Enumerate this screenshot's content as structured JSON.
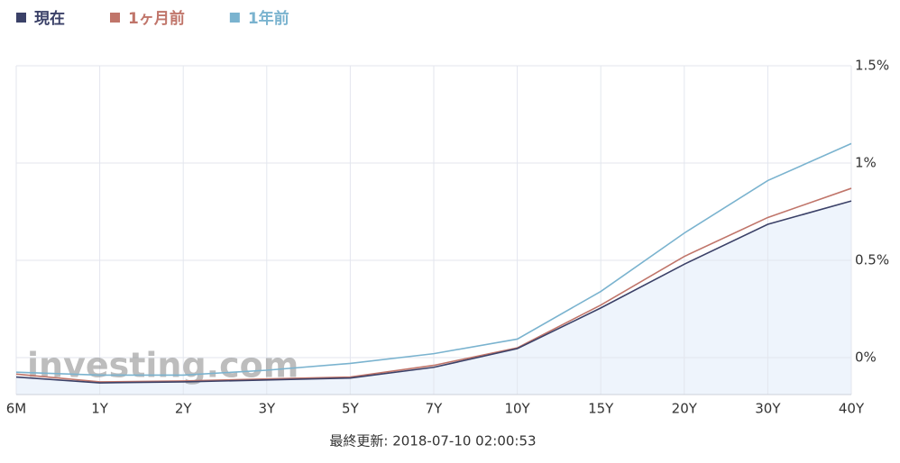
{
  "chart_data": {
    "type": "line",
    "categories": [
      "6M",
      "1Y",
      "2Y",
      "3Y",
      "5Y",
      "7Y",
      "10Y",
      "15Y",
      "20Y",
      "30Y",
      "40Y"
    ],
    "series": [
      {
        "name": "現在",
        "color": "#3b4168",
        "area": true,
        "area_color": "#eef4fc",
        "values": [
          -0.1,
          -0.13,
          -0.125,
          -0.115,
          -0.105,
          -0.05,
          0.046,
          0.255,
          0.48,
          0.685,
          0.805
        ]
      },
      {
        "name": "1ヶ月前",
        "color": "#c0756a",
        "values": [
          -0.085,
          -0.125,
          -0.12,
          -0.11,
          -0.1,
          -0.04,
          0.05,
          0.27,
          0.52,
          0.72,
          0.87
        ]
      },
      {
        "name": "1年前",
        "color": "#7ab3cf",
        "values": [
          -0.075,
          -0.09,
          -0.09,
          -0.065,
          -0.03,
          0.02,
          0.095,
          0.34,
          0.64,
          0.91,
          1.1
        ]
      }
    ],
    "ylim": [
      -0.19,
      1.5
    ],
    "yticks": [
      {
        "value": 0,
        "label": "0%"
      },
      {
        "value": 0.5,
        "label": "0.5%"
      },
      {
        "value": 1,
        "label": "1%"
      },
      {
        "value": 1.5,
        "label": "1.5%"
      }
    ],
    "grid": true,
    "legend": "top-left",
    "watermark": "investing.com",
    "footer": "最終更新: 2018-07-10 02:00:53"
  }
}
